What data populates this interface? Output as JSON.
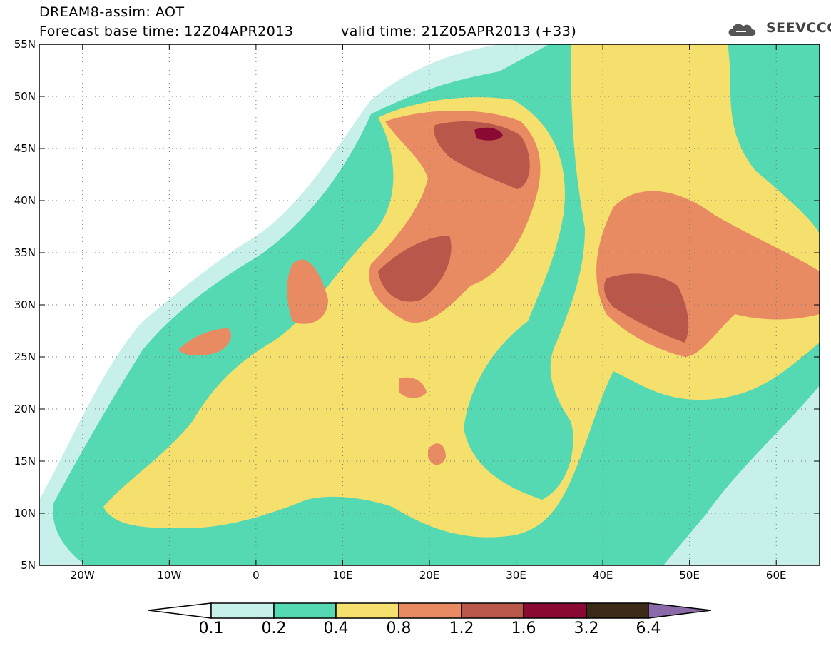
{
  "header": {
    "title": "DREAM8-assim: AOT",
    "base_time": "Forecast base time: 12Z04APR2013",
    "valid_time": "valid time: 21Z05APR2013 (+33)",
    "logo_text": "SEEVCCC"
  },
  "map": {
    "lon_range": [
      -25,
      65
    ],
    "lat_range": [
      5,
      55
    ],
    "lat_labels": [
      "55N",
      "50N",
      "45N",
      "40N",
      "35N",
      "30N",
      "25N",
      "20N",
      "15N",
      "10N",
      "5N"
    ],
    "lat_values": [
      55,
      50,
      45,
      40,
      35,
      30,
      25,
      20,
      15,
      10,
      5
    ],
    "lon_labels": [
      "20W",
      "10W",
      "0",
      "10E",
      "20E",
      "30E",
      "40E",
      "50E",
      "60E"
    ],
    "lon_values": [
      -20,
      -10,
      0,
      10,
      20,
      30,
      40,
      50,
      60
    ],
    "grid": "dotted"
  },
  "colorbar": {
    "labels": [
      "0.1",
      "0.2",
      "0.4",
      "0.8",
      "1.2",
      "1.6",
      "3.2",
      "6.4"
    ],
    "colors": {
      "low_arrow": "#ffffff",
      "c1": "#c8f0ea",
      "c2": "#55d9b2",
      "c3": "#f5df6d",
      "c4": "#e98b62",
      "c5": "#b9574a",
      "c6": "#8a0a33",
      "c7": "#3d2a17",
      "high_arrow": "#8a6aa8"
    }
  }
}
